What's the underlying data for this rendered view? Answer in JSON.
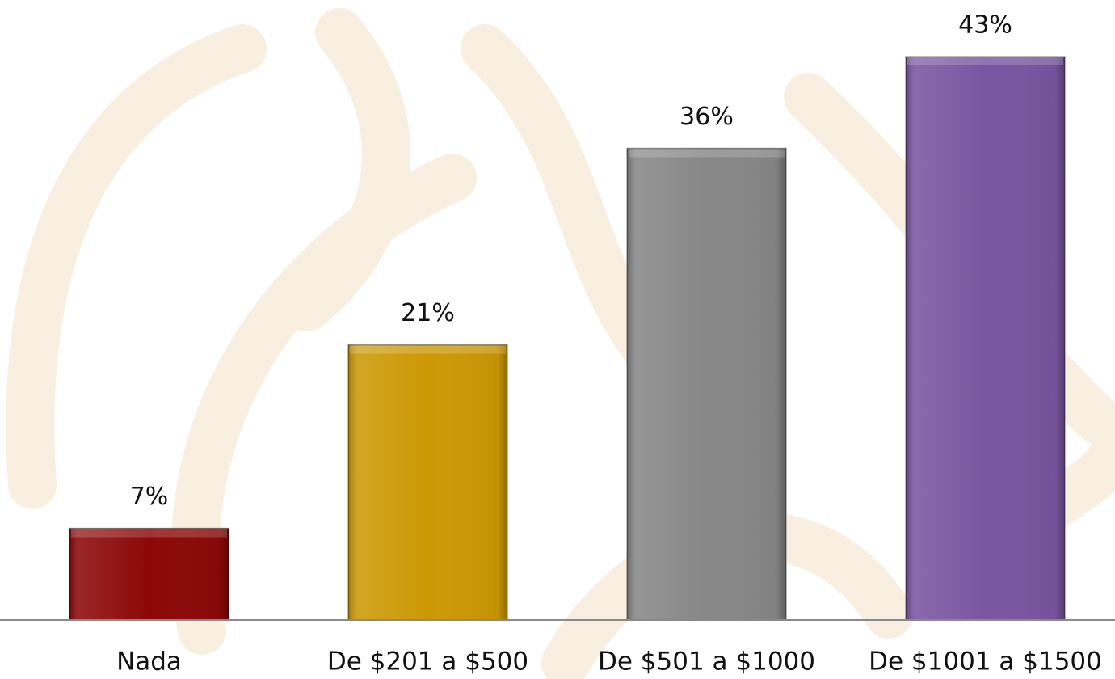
{
  "chart_data": {
    "type": "bar",
    "categories": [
      "Nada",
      "De $201 a $500",
      "De $501 a $1000",
      "De $1001 a $1500"
    ],
    "values": [
      7,
      21,
      36,
      43
    ],
    "value_labels": [
      "7%",
      "21%",
      "36%",
      "43%"
    ],
    "colors": [
      "#8c0808",
      "#cc9905",
      "#878787",
      "#7a55a0"
    ]
  }
}
